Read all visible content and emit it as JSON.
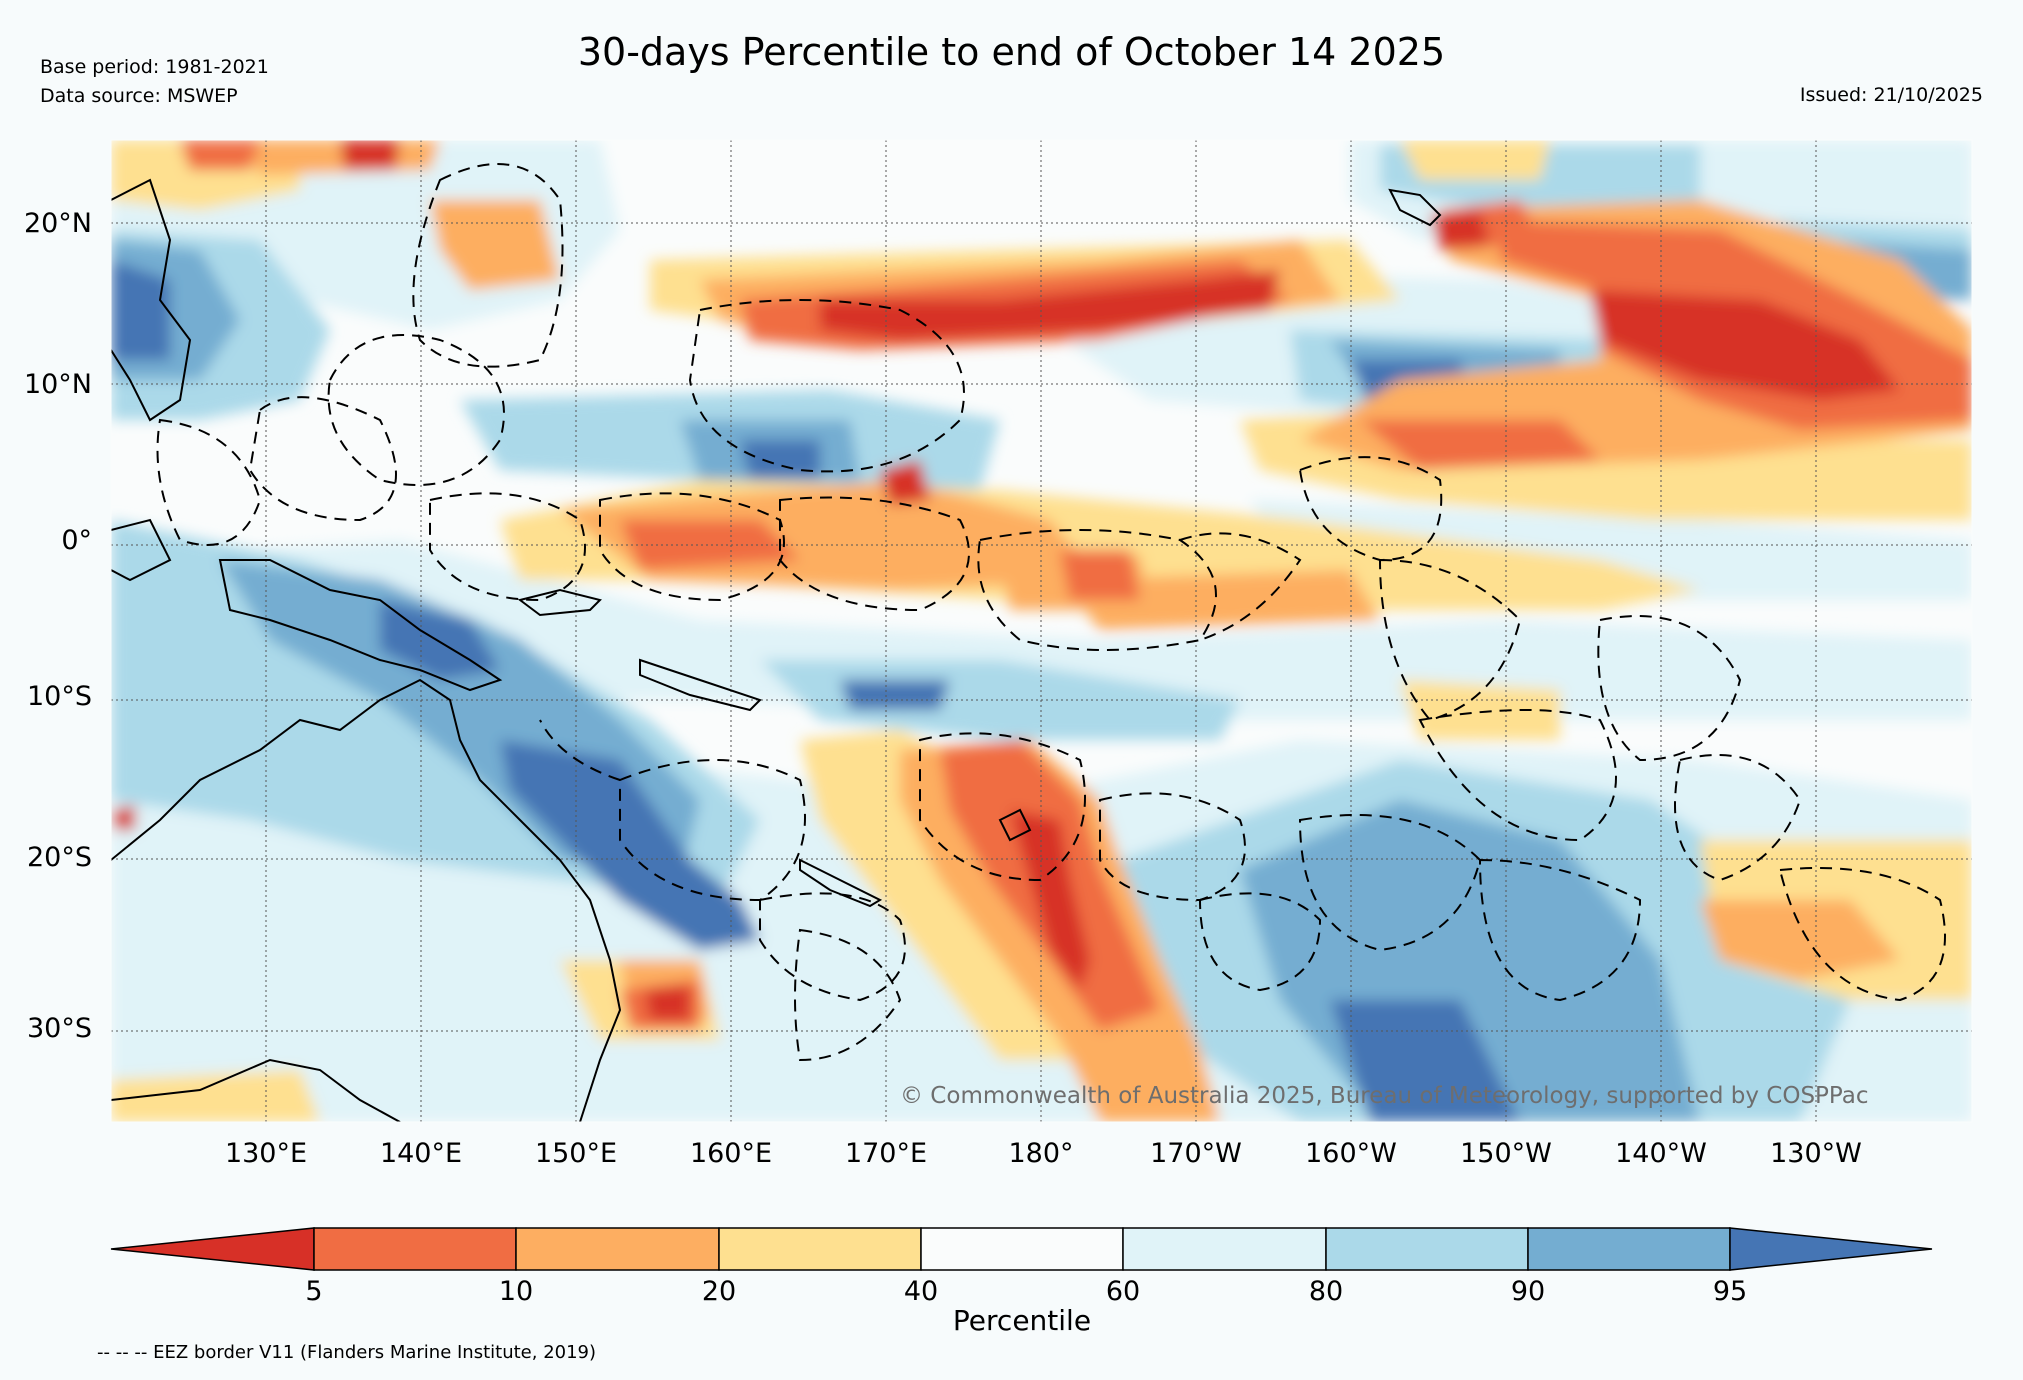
{
  "title": "30-days Percentile to end of October 14 2025",
  "base_period": "Base period: 1981-2021",
  "data_source": "Data source: MSWEP",
  "issued": "Issued: 21/10/2025",
  "copyright": "© Commonwealth of Australia 2025, Bureau of Meteorology, supported by COSPPac",
  "eez_note": "-- -- -- EEZ border V11 (Flanders Marine Institute, 2019)",
  "map": {
    "lat_labels": [
      "20°N",
      "10°N",
      "0°",
      "10°S",
      "20°S",
      "30°S"
    ],
    "lon_labels": [
      "130°E",
      "140°E",
      "150°E",
      "160°E",
      "170°E",
      "180°",
      "170°W",
      "160°W",
      "150°W",
      "140°W",
      "130°W"
    ],
    "extent": {
      "lon_min": 120,
      "lon_max": 240,
      "lat_min": -36,
      "lat_max": 25
    }
  },
  "colorbar": {
    "title": "Percentile",
    "ticks": [
      "5",
      "10",
      "20",
      "40",
      "60",
      "80",
      "90",
      "95"
    ],
    "colors": [
      "#d73027",
      "#f06d43",
      "#fdae61",
      "#fee090",
      "#fafcfc",
      "#e0f3f8",
      "#abd9e9",
      "#74add1",
      "#4575b4"
    ]
  },
  "colors": {
    "red": "#d73027",
    "orange": "#f06d43",
    "light_orange": "#fdae61",
    "yellow": "#fee090",
    "white": "#fafcfc",
    "pale_blue": "#e0f3f8",
    "light_blue": "#abd9e9",
    "mid_blue": "#74add1",
    "dark_blue": "#4575b4"
  }
}
